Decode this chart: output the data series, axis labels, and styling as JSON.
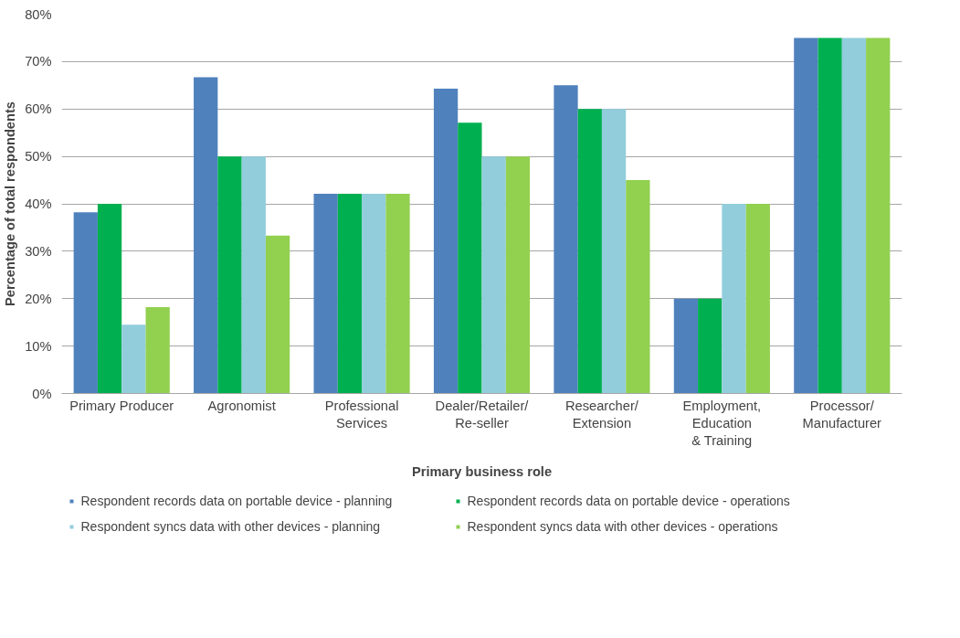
{
  "chart_data": {
    "type": "bar",
    "xlabel": "Primary business role",
    "ylabel": "Percentage of total respondents",
    "categories": [
      "Primary Producer",
      "Agronomist",
      "Professional\nServices",
      "Dealer/Retailer/\nRe-seller",
      "Researcher/\nExtension",
      "Employment,\nEducation\n& Training",
      "Processor/\nManufacturer"
    ],
    "series": [
      {
        "name": "Respondent records data on portable device - planning",
        "color": "#4f81bd",
        "values": [
          38.2,
          66.7,
          42.1,
          64.3,
          65,
          20,
          75
        ]
      },
      {
        "name": "Respondent records data on portable device - operations",
        "color": "#00b050",
        "values": [
          40,
          50,
          42.1,
          57.1,
          60,
          20,
          75
        ]
      },
      {
        "name": "Respondent syncs data with other devices - planning",
        "color": "#92cddc",
        "values": [
          14.5,
          50,
          42.1,
          50,
          60,
          40,
          75
        ]
      },
      {
        "name": "Respondent syncs data with other devices - operations",
        "color": "#92d050",
        "values": [
          18.2,
          33.3,
          42.1,
          50,
          45,
          40,
          75
        ]
      }
    ],
    "ylim": [
      0,
      80
    ],
    "yticks": [
      {
        "value": 0,
        "label": "0%"
      },
      {
        "value": 10,
        "label": "10%"
      },
      {
        "value": 20,
        "label": "20%"
      },
      {
        "value": 30,
        "label": "30%"
      },
      {
        "value": 40,
        "label": "40%"
      },
      {
        "value": 50,
        "label": "50%"
      },
      {
        "value": 60,
        "label": "60%"
      },
      {
        "value": 70,
        "label": "70%"
      },
      {
        "value": 80,
        "label": "80%"
      }
    ],
    "grid": "y",
    "legend": "bottom"
  }
}
